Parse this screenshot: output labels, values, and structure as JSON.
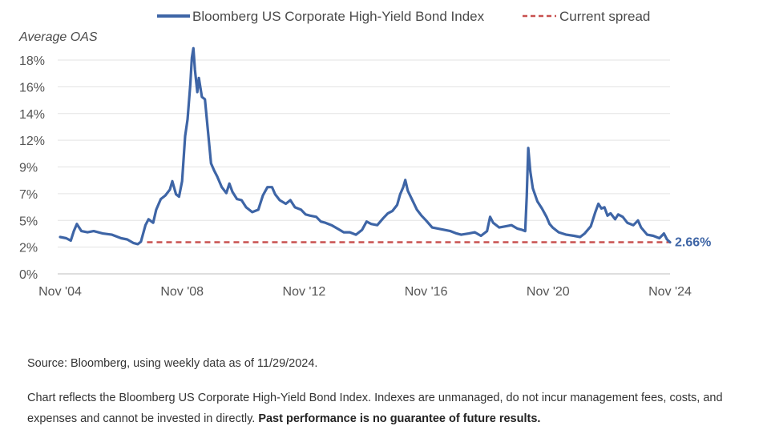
{
  "chart_data": {
    "type": "line",
    "title": "",
    "ylabel": "Average OAS",
    "xlabel": "",
    "ylim": [
      0,
      20
    ],
    "x_range": [
      "2004-11",
      "2024-11"
    ],
    "grid": "horizontal",
    "legend_position": "top",
    "y_tick_labels": [
      "0%",
      "2%",
      "5%",
      "7%",
      "9%",
      "12%",
      "14%",
      "16%",
      "18%"
    ],
    "x_tick_labels": [
      "Nov '04",
      "Nov '08",
      "Nov '12",
      "Nov '16",
      "Nov '20",
      "Nov '24"
    ],
    "series": [
      {
        "name": "Bloomberg US Corporate High-Yield Bond Index",
        "color": "#3e65a6",
        "style": "solid",
        "points": [
          [
            2004.9,
            3.1
          ],
          [
            2005.1,
            3.0
          ],
          [
            2005.25,
            2.8
          ],
          [
            2005.35,
            3.6
          ],
          [
            2005.45,
            4.2
          ],
          [
            2005.6,
            3.6
          ],
          [
            2005.8,
            3.5
          ],
          [
            2006.0,
            3.6
          ],
          [
            2006.3,
            3.4
          ],
          [
            2006.6,
            3.3
          ],
          [
            2006.9,
            3.0
          ],
          [
            2007.1,
            2.9
          ],
          [
            2007.3,
            2.6
          ],
          [
            2007.45,
            2.5
          ],
          [
            2007.55,
            2.7
          ],
          [
            2007.7,
            4.1
          ],
          [
            2007.8,
            4.6
          ],
          [
            2007.95,
            4.3
          ],
          [
            2008.05,
            5.4
          ],
          [
            2008.2,
            6.3
          ],
          [
            2008.35,
            6.6
          ],
          [
            2008.5,
            7.1
          ],
          [
            2008.58,
            7.8
          ],
          [
            2008.7,
            6.7
          ],
          [
            2008.8,
            6.5
          ],
          [
            2008.9,
            7.8
          ],
          [
            2009.0,
            11.6
          ],
          [
            2009.08,
            13.0
          ],
          [
            2009.17,
            16.0
          ],
          [
            2009.22,
            18.2
          ],
          [
            2009.27,
            19.0
          ],
          [
            2009.32,
            17.2
          ],
          [
            2009.4,
            15.3
          ],
          [
            2009.45,
            16.5
          ],
          [
            2009.55,
            14.9
          ],
          [
            2009.65,
            14.7
          ],
          [
            2009.75,
            12.0
          ],
          [
            2009.85,
            9.3
          ],
          [
            2009.95,
            8.7
          ],
          [
            2010.05,
            8.2
          ],
          [
            2010.2,
            7.3
          ],
          [
            2010.35,
            6.8
          ],
          [
            2010.45,
            7.6
          ],
          [
            2010.55,
            6.9
          ],
          [
            2010.7,
            6.3
          ],
          [
            2010.85,
            6.2
          ],
          [
            2011.0,
            5.6
          ],
          [
            2011.2,
            5.2
          ],
          [
            2011.4,
            5.4
          ],
          [
            2011.55,
            6.6
          ],
          [
            2011.7,
            7.3
          ],
          [
            2011.85,
            7.3
          ],
          [
            2011.95,
            6.7
          ],
          [
            2012.1,
            6.2
          ],
          [
            2012.3,
            5.9
          ],
          [
            2012.45,
            6.2
          ],
          [
            2012.6,
            5.6
          ],
          [
            2012.8,
            5.4
          ],
          [
            2012.95,
            5.0
          ],
          [
            2013.1,
            4.9
          ],
          [
            2013.3,
            4.8
          ],
          [
            2013.45,
            4.4
          ],
          [
            2013.6,
            4.3
          ],
          [
            2013.8,
            4.1
          ],
          [
            2014.0,
            3.8
          ],
          [
            2014.2,
            3.5
          ],
          [
            2014.4,
            3.5
          ],
          [
            2014.6,
            3.3
          ],
          [
            2014.8,
            3.7
          ],
          [
            2014.95,
            4.4
          ],
          [
            2015.1,
            4.2
          ],
          [
            2015.3,
            4.1
          ],
          [
            2015.5,
            4.7
          ],
          [
            2015.65,
            5.1
          ],
          [
            2015.8,
            5.3
          ],
          [
            2015.95,
            5.8
          ],
          [
            2016.05,
            6.7
          ],
          [
            2016.15,
            7.3
          ],
          [
            2016.22,
            7.9
          ],
          [
            2016.3,
            7.0
          ],
          [
            2016.45,
            6.2
          ],
          [
            2016.6,
            5.4
          ],
          [
            2016.75,
            4.9
          ],
          [
            2016.9,
            4.5
          ],
          [
            2017.1,
            3.9
          ],
          [
            2017.3,
            3.8
          ],
          [
            2017.5,
            3.7
          ],
          [
            2017.7,
            3.6
          ],
          [
            2017.9,
            3.4
          ],
          [
            2018.05,
            3.3
          ],
          [
            2018.3,
            3.4
          ],
          [
            2018.5,
            3.5
          ],
          [
            2018.7,
            3.2
          ],
          [
            2018.9,
            3.6
          ],
          [
            2019.0,
            4.8
          ],
          [
            2019.1,
            4.3
          ],
          [
            2019.3,
            3.9
          ],
          [
            2019.5,
            4.0
          ],
          [
            2019.7,
            4.1
          ],
          [
            2019.9,
            3.8
          ],
          [
            2020.05,
            3.7
          ],
          [
            2020.15,
            3.6
          ],
          [
            2020.2,
            6.5
          ],
          [
            2020.25,
            10.6
          ],
          [
            2020.32,
            8.6
          ],
          [
            2020.4,
            7.2
          ],
          [
            2020.55,
            6.1
          ],
          [
            2020.7,
            5.5
          ],
          [
            2020.85,
            4.8
          ],
          [
            2020.95,
            4.2
          ],
          [
            2021.05,
            3.9
          ],
          [
            2021.25,
            3.5
          ],
          [
            2021.5,
            3.3
          ],
          [
            2021.75,
            3.2
          ],
          [
            2021.95,
            3.1
          ],
          [
            2022.1,
            3.4
          ],
          [
            2022.3,
            4.0
          ],
          [
            2022.45,
            5.2
          ],
          [
            2022.55,
            5.9
          ],
          [
            2022.65,
            5.5
          ],
          [
            2022.75,
            5.6
          ],
          [
            2022.85,
            4.9
          ],
          [
            2022.95,
            5.1
          ],
          [
            2023.1,
            4.6
          ],
          [
            2023.2,
            5.0
          ],
          [
            2023.35,
            4.8
          ],
          [
            2023.5,
            4.3
          ],
          [
            2023.7,
            4.1
          ],
          [
            2023.85,
            4.5
          ],
          [
            2023.95,
            3.9
          ],
          [
            2024.15,
            3.3
          ],
          [
            2024.35,
            3.2
          ],
          [
            2024.55,
            3.0
          ],
          [
            2024.7,
            3.4
          ],
          [
            2024.8,
            2.9
          ],
          [
            2024.9,
            2.66
          ]
        ]
      }
    ],
    "reference_line": {
      "name": "Current spread",
      "value": 2.66,
      "x_start": 2007.75,
      "x_end": 2024.9,
      "color": "#c8504f",
      "style": "dashed"
    },
    "annotation": "2.66%",
    "annotation_color": "#3e65a6"
  },
  "notes": {
    "source": "Source: Bloomberg, using weekly data as of 11/29/2024.",
    "disclaimer": "Chart reflects the Bloomberg US Corporate High-Yield Bond Index. Indexes are unmanaged, do not incur management fees, costs, and expenses and cannot be invested in directly.",
    "disclaimer_bold": "Past performance is no guarantee of future results."
  }
}
